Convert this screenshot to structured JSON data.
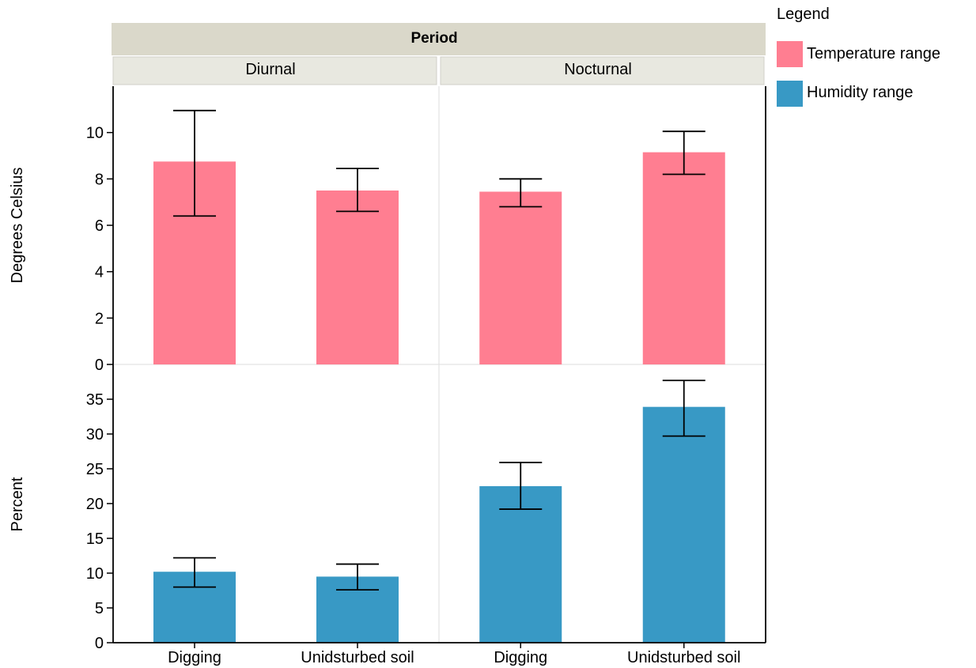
{
  "chart_data": {
    "type": "bar",
    "facet_title": "Period",
    "facets": [
      "Diurnal",
      "Nocturnal"
    ],
    "categories": [
      "Digging",
      "Unidsturbed soil"
    ],
    "legend_title": "Legend",
    "legend_position": "top-right",
    "grid": false,
    "panels": [
      {
        "series": "Temperature range",
        "ylabel": "Degrees Celsius",
        "ylim": [
          0,
          12
        ],
        "yticks": [
          0,
          2,
          4,
          6,
          8,
          10
        ],
        "values": {
          "Diurnal": [
            8.75,
            7.5
          ],
          "Nocturnal": [
            7.45,
            9.15
          ]
        },
        "errors": {
          "Diurnal": [
            [
              6.4,
              10.95
            ],
            [
              6.6,
              8.45
            ]
          ],
          "Nocturnal": [
            [
              6.8,
              8.0
            ],
            [
              8.2,
              10.05
            ]
          ]
        }
      },
      {
        "series": "Humidity range",
        "ylabel": "Percent",
        "ylim": [
          0,
          40
        ],
        "yticks": [
          0,
          5,
          10,
          15,
          20,
          25,
          30,
          35
        ],
        "values": {
          "Diurnal": [
            10.2,
            9.5
          ],
          "Nocturnal": [
            22.5,
            33.9
          ]
        },
        "errors": {
          "Diurnal": [
            [
              8.0,
              12.2
            ],
            [
              7.6,
              11.3
            ]
          ],
          "Nocturnal": [
            [
              19.2,
              25.9
            ],
            [
              29.7,
              37.7
            ]
          ]
        }
      }
    ],
    "legend": [
      {
        "name": "Temperature range",
        "color": "#FF7E91"
      },
      {
        "name": "Humidity range",
        "color": "#3899C5"
      }
    ]
  }
}
